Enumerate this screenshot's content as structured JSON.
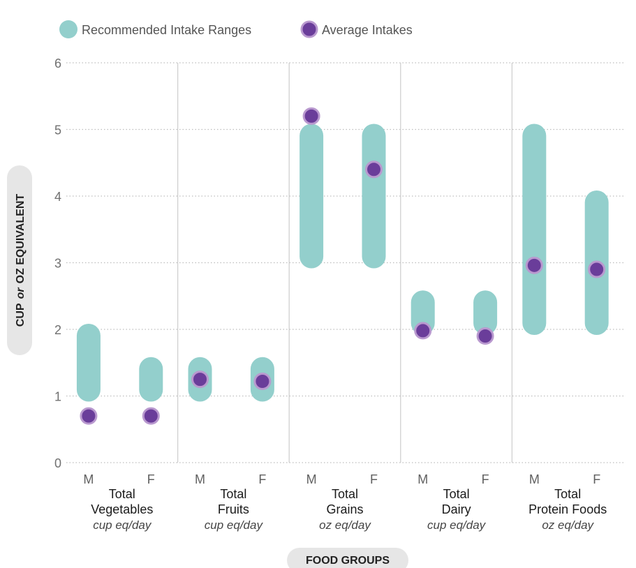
{
  "chart_data": {
    "type": "range-dot",
    "legend": {
      "position": "top-left",
      "entries": [
        {
          "label": "Recommended Intake Ranges",
          "color": "#93cfcc",
          "marker": "bar"
        },
        {
          "label": "Average Intakes",
          "color": "#6a3d9a",
          "marker": "dot"
        }
      ]
    },
    "ylabel_parts": [
      "CUP",
      "or",
      "OZ EQUIVALENT"
    ],
    "xlabel": "FOOD GROUPS",
    "ylim": [
      0,
      6
    ],
    "yticks": [
      0,
      1,
      2,
      3,
      4,
      5,
      6
    ],
    "grid": "horizontal dotted",
    "groups": [
      {
        "name_lines": [
          "Total",
          "Vegetables"
        ],
        "unit": "cup eq/day",
        "sexes": [
          {
            "label": "M",
            "range": [
              1.0,
              2.0
            ],
            "average": 0.7
          },
          {
            "label": "F",
            "range": [
              1.0,
              1.5
            ],
            "average": 0.7
          }
        ]
      },
      {
        "name_lines": [
          "Total",
          "Fruits"
        ],
        "unit": "cup eq/day",
        "sexes": [
          {
            "label": "M",
            "range": [
              1.0,
              1.5
            ],
            "average": 1.25
          },
          {
            "label": "F",
            "range": [
              1.0,
              1.5
            ],
            "average": 1.22
          }
        ]
      },
      {
        "name_lines": [
          "Total",
          "Grains"
        ],
        "unit": "oz eq/day",
        "sexes": [
          {
            "label": "M",
            "range": [
              3.0,
              5.0
            ],
            "average": 5.2
          },
          {
            "label": "F",
            "range": [
              3.0,
              5.0
            ],
            "average": 4.4
          }
        ]
      },
      {
        "name_lines": [
          "Total",
          "Dairy"
        ],
        "unit": "cup eq/day",
        "sexes": [
          {
            "label": "M",
            "range": [
              2.0,
              2.5
            ],
            "average": 1.98
          },
          {
            "label": "F",
            "range": [
              2.0,
              2.5
            ],
            "average": 1.9
          }
        ]
      },
      {
        "name_lines": [
          "Total",
          "Protein Foods"
        ],
        "unit": "oz eq/day",
        "sexes": [
          {
            "label": "M",
            "range": [
              2.0,
              5.0
            ],
            "average": 2.96
          },
          {
            "label": "F",
            "range": [
              2.0,
              4.0
            ],
            "average": 2.9
          }
        ]
      }
    ],
    "colors": {
      "range": "#93cfcc",
      "dot_fill": "#6a3d9a",
      "dot_stroke": "#b999cf",
      "grid": "#bdbdbd",
      "separator": "#d0d0d0",
      "pill": "#e6e6e6"
    }
  }
}
